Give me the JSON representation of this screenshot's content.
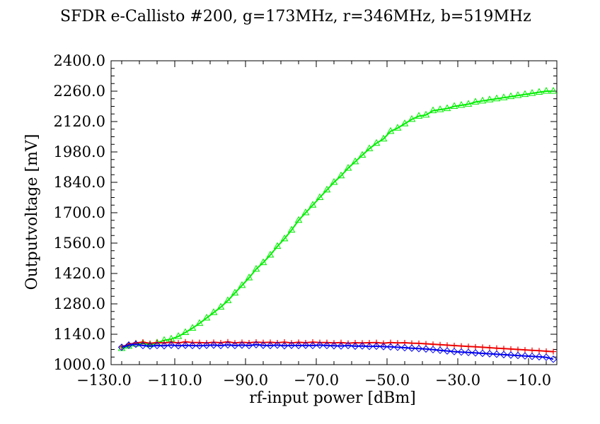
{
  "chart_data": {
    "type": "line",
    "title": "SFDR e-Callisto #200, g=173MHz, r=346MHz, b=519MHz",
    "xlabel": "rf-input power [dBm]",
    "ylabel": "Outputvoltage [mV]",
    "xlim": [
      -128,
      -2
    ],
    "ylim": [
      1000,
      2400
    ],
    "x_ticks": [
      -130,
      -110,
      -90,
      -70,
      -50,
      -30,
      -10
    ],
    "x_tick_labels": [
      "−130.0",
      "−110.0",
      "−90.0",
      "−70.0",
      "−50.0",
      "−30.0",
      "−10.0"
    ],
    "y_ticks": [
      1000,
      1140,
      1280,
      1420,
      1560,
      1700,
      1840,
      1980,
      2120,
      2260,
      2400
    ],
    "y_tick_labels": [
      "1000.0",
      "1140.0",
      "1280.0",
      "1420.0",
      "1560.0",
      "1700.0",
      "1840.0",
      "1980.0",
      "2120.0",
      "2260.0",
      "2400.0"
    ],
    "grid": false,
    "legend": "none",
    "series": [
      {
        "color": "#00ee00",
        "marker": "triangle",
        "x": [
          -125,
          -123,
          -121,
          -119,
          -117,
          -115,
          -113,
          -111,
          -109,
          -107,
          -105,
          -103,
          -101,
          -99,
          -97,
          -95,
          -93,
          -91,
          -89,
          -87,
          -85,
          -83,
          -81,
          -79,
          -77,
          -75,
          -73,
          -71,
          -69,
          -67,
          -65,
          -63,
          -61,
          -59,
          -57,
          -55,
          -53,
          -51,
          -49,
          -47,
          -45,
          -43,
          -41,
          -39,
          -37,
          -35,
          -33,
          -31,
          -29,
          -27,
          -25,
          -23,
          -21,
          -19,
          -17,
          -15,
          -13,
          -11,
          -9,
          -7,
          -5,
          -3
        ],
        "y": [
          1075,
          1085,
          1095,
          1098,
          1092,
          1100,
          1112,
          1118,
          1130,
          1148,
          1168,
          1190,
          1215,
          1240,
          1265,
          1295,
          1330,
          1365,
          1400,
          1440,
          1470,
          1505,
          1545,
          1580,
          1620,
          1665,
          1700,
          1735,
          1770,
          1805,
          1840,
          1870,
          1905,
          1935,
          1965,
          1995,
          2020,
          2040,
          2075,
          2090,
          2110,
          2130,
          2145,
          2150,
          2170,
          2175,
          2180,
          2190,
          2195,
          2200,
          2210,
          2215,
          2220,
          2225,
          2230,
          2235,
          2240,
          2245,
          2250,
          2255,
          2260,
          2260
        ]
      },
      {
        "color": "#ee0000",
        "marker": "plus",
        "x": [
          -125,
          -123,
          -121,
          -119,
          -117,
          -115,
          -113,
          -111,
          -109,
          -107,
          -105,
          -103,
          -101,
          -99,
          -97,
          -95,
          -93,
          -91,
          -89,
          -87,
          -85,
          -83,
          -81,
          -79,
          -77,
          -75,
          -73,
          -71,
          -69,
          -67,
          -65,
          -63,
          -61,
          -59,
          -57,
          -55,
          -53,
          -51,
          -49,
          -47,
          -45,
          -43,
          -41,
          -39,
          -37,
          -35,
          -33,
          -31,
          -29,
          -27,
          -25,
          -23,
          -21,
          -19,
          -17,
          -15,
          -13,
          -11,
          -9,
          -7,
          -5,
          -3
        ],
        "y": [
          1082,
          1094,
          1100,
          1104,
          1098,
          1102,
          1100,
          1104,
          1100,
          1105,
          1102,
          1102,
          1100,
          1103,
          1101,
          1105,
          1100,
          1103,
          1101,
          1104,
          1102,
          1103,
          1101,
          1104,
          1100,
          1103,
          1101,
          1104,
          1102,
          1102,
          1100,
          1102,
          1099,
          1101,
          1100,
          1101,
          1102,
          1099,
          1102,
          1100,
          1101,
          1099,
          1098,
          1096,
          1094,
          1092,
          1090,
          1088,
          1086,
          1084,
          1082,
          1080,
          1078,
          1076,
          1074,
          1072,
          1070,
          1068,
          1066,
          1064,
          1062,
          1060
        ]
      },
      {
        "color": "#0000ee",
        "marker": "diamond",
        "x": [
          -125,
          -123,
          -121,
          -119,
          -117,
          -115,
          -113,
          -111,
          -109,
          -107,
          -105,
          -103,
          -101,
          -99,
          -97,
          -95,
          -93,
          -91,
          -89,
          -87,
          -85,
          -83,
          -81,
          -79,
          -77,
          -75,
          -73,
          -71,
          -69,
          -67,
          -65,
          -63,
          -61,
          -59,
          -57,
          -55,
          -53,
          -51,
          -49,
          -47,
          -45,
          -43,
          -41,
          -39,
          -37,
          -35,
          -33,
          -31,
          -29,
          -27,
          -25,
          -23,
          -21,
          -19,
          -17,
          -15,
          -13,
          -11,
          -9,
          -7,
          -5,
          -3
        ],
        "y": [
          1080,
          1090,
          1094,
          1088,
          1086,
          1088,
          1087,
          1090,
          1087,
          1089,
          1088,
          1087,
          1089,
          1090,
          1088,
          1091,
          1088,
          1090,
          1088,
          1092,
          1089,
          1088,
          1090,
          1087,
          1089,
          1088,
          1089,
          1088,
          1090,
          1088,
          1087,
          1086,
          1088,
          1085,
          1086,
          1084,
          1085,
          1083,
          1082,
          1080,
          1078,
          1076,
          1074,
          1072,
          1069,
          1066,
          1063,
          1060,
          1058,
          1056,
          1054,
          1052,
          1050,
          1048,
          1046,
          1044,
          1042,
          1040,
          1038,
          1036,
          1034,
          1025
        ]
      }
    ]
  }
}
